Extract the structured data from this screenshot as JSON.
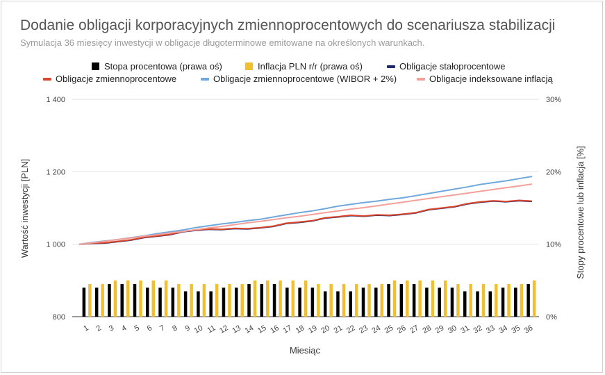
{
  "chart_data": {
    "type": "bar",
    "title": "Dodanie obligacji korporacyjnych zmiennoprocentowych do scenariusza stabilizacji",
    "subtitle": "Symulacja 36 miesięcy inwestycji w obligacje długoterminowe emitowane na określonych warunkach.",
    "xlabel": "Miesiąc",
    "ylabel": "Wartość inwestycji [PLN]",
    "y2label": "Stopy procentowe lub inflacja [%]",
    "ylim": [
      800,
      1400
    ],
    "y2lim": [
      0,
      30
    ],
    "yticks": [
      "800",
      "1 000",
      "1 200",
      "1 400"
    ],
    "y2ticks": [
      "0%",
      "10%",
      "20%",
      "30%"
    ],
    "grid": true,
    "legend_position": "top",
    "categories": [
      "1",
      "2",
      "3",
      "4",
      "5",
      "6",
      "7",
      "8",
      "9",
      "10",
      "11",
      "12",
      "13",
      "14",
      "15",
      "16",
      "17",
      "18",
      "19",
      "20",
      "21",
      "22",
      "23",
      "24",
      "25",
      "26",
      "27",
      "28",
      "29",
      "30",
      "31",
      "32",
      "33",
      "34",
      "35",
      "36"
    ],
    "series": [
      {
        "name": "Stopa procentowa (prawa oś)",
        "kind": "bar",
        "axis": "right",
        "color": "#000000",
        "values": [
          4,
          4,
          4.5,
          4.5,
          4.5,
          4,
          4,
          4,
          3.5,
          3.5,
          3.5,
          4,
          4,
          4.5,
          4.5,
          4.5,
          4,
          4,
          4,
          3.5,
          3.5,
          3.5,
          4,
          4,
          4.5,
          4.5,
          4.5,
          4,
          4,
          4,
          3.5,
          3.5,
          3.5,
          4,
          4,
          4.5
        ]
      },
      {
        "name": "Inflacja PLN r/r (prawa oś)",
        "kind": "bar",
        "axis": "right",
        "color": "#f0c030",
        "values": [
          4.5,
          4.5,
          5,
          5,
          5,
          5,
          5,
          4.5,
          4.5,
          4.5,
          4.5,
          4.5,
          4.5,
          5,
          5,
          5,
          5,
          5,
          4.5,
          4.5,
          4.5,
          4.5,
          4.5,
          4.5,
          5,
          5,
          5,
          5,
          5,
          4.5,
          4.5,
          4.5,
          4.5,
          4.5,
          4.5,
          5
        ]
      },
      {
        "name": "Obligacje stałoprocentowe",
        "kind": "line",
        "axis": "left",
        "color": "#1f2a6b",
        "values": [
          1000,
          1002,
          1003,
          1007,
          1011,
          1018,
          1022,
          1026,
          1034,
          1038,
          1041,
          1040,
          1043,
          1042,
          1045,
          1049,
          1057,
          1060,
          1064,
          1072,
          1075,
          1079,
          1077,
          1080,
          1079,
          1082,
          1086,
          1095,
          1099,
          1103,
          1111,
          1116,
          1119,
          1117,
          1120,
          1118
        ]
      },
      {
        "name": "Obligacje zmiennoprocentowe",
        "kind": "line",
        "axis": "left",
        "color": "#d9462b",
        "values": [
          1000,
          1003,
          1004,
          1008,
          1012,
          1019,
          1023,
          1027,
          1035,
          1039,
          1042,
          1041,
          1044,
          1043,
          1046,
          1050,
          1058,
          1061,
          1065,
          1073,
          1076,
          1080,
          1078,
          1081,
          1080,
          1083,
          1087,
          1096,
          1100,
          1104,
          1112,
          1117,
          1120,
          1118,
          1121,
          1119
        ]
      },
      {
        "name": "Obligacje zmiennoprocentowe (WIBOR + 2%)",
        "kind": "line",
        "axis": "left",
        "color": "#6fa8dc",
        "values": [
          1000,
          1005,
          1009,
          1013,
          1018,
          1023,
          1029,
          1034,
          1039,
          1046,
          1051,
          1056,
          1060,
          1065,
          1069,
          1075,
          1081,
          1087,
          1092,
          1098,
          1105,
          1110,
          1115,
          1119,
          1124,
          1128,
          1134,
          1140,
          1146,
          1152,
          1158,
          1165,
          1170,
          1175,
          1181,
          1187
        ]
      },
      {
        "name": "Obligacje indeksowane inflacją",
        "kind": "line",
        "axis": "left",
        "color": "#f4a09a",
        "values": [
          1000,
          1004,
          1008,
          1013,
          1017,
          1022,
          1026,
          1031,
          1035,
          1040,
          1045,
          1049,
          1054,
          1059,
          1063,
          1068,
          1073,
          1077,
          1082,
          1087,
          1092,
          1097,
          1101,
          1106,
          1111,
          1116,
          1121,
          1126,
          1131,
          1136,
          1141,
          1146,
          1151,
          1156,
          1161,
          1166
        ]
      }
    ]
  }
}
